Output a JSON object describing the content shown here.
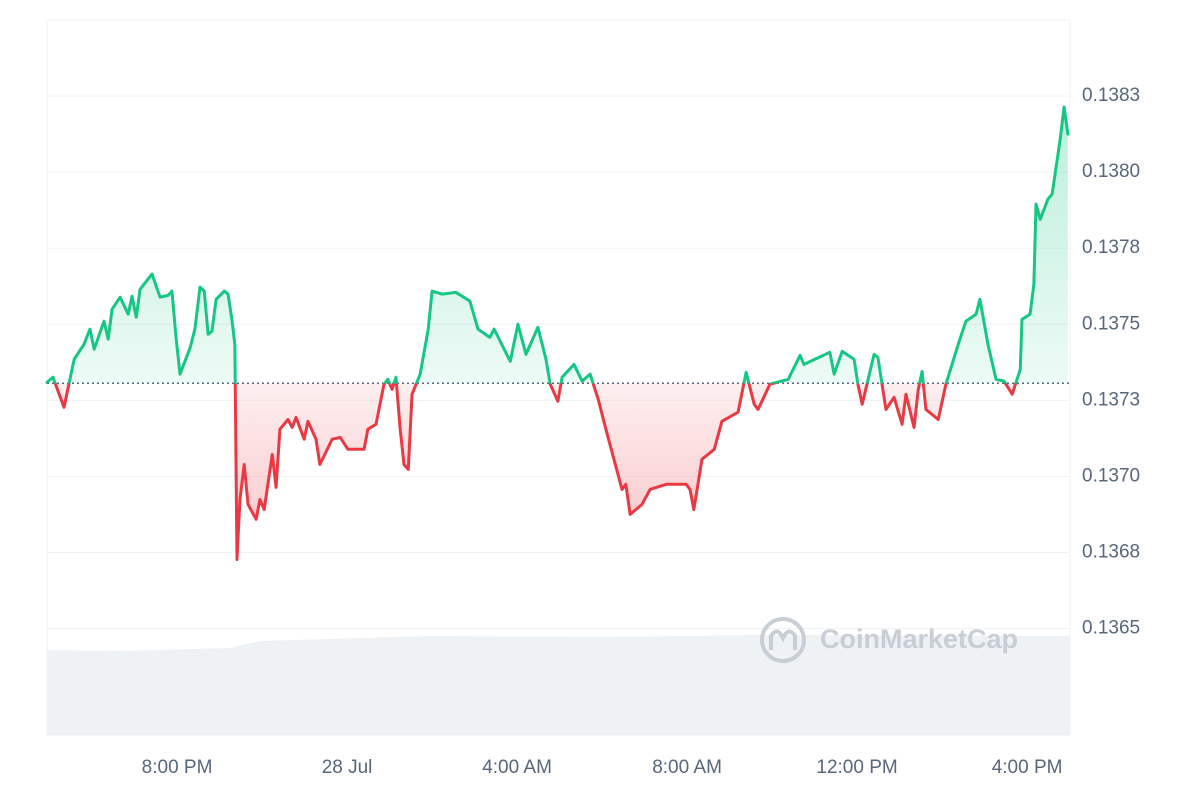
{
  "chart_data": {
    "type": "line",
    "watermark": "CoinMarketCap",
    "baseline": 0.137306,
    "up_color": "#16c784",
    "down_color": "#ea3943",
    "xlim": [
      16.94,
      41.01
    ],
    "xticks": [
      {
        "value": 20,
        "label": "8:00 PM"
      },
      {
        "value": 24,
        "label": "28 Jul"
      },
      {
        "value": 28,
        "label": "4:00 AM"
      },
      {
        "value": 32,
        "label": "8:00 AM"
      },
      {
        "value": 36,
        "label": "12:00 PM"
      },
      {
        "value": 40,
        "label": "4:00 PM"
      }
    ],
    "ylim": [
      0.13615,
      0.1385
    ],
    "yticks": [
      {
        "value": 0.13825,
        "label": "0.1383"
      },
      {
        "value": 0.138,
        "label": "0.1380"
      },
      {
        "value": 0.13775,
        "label": "0.1378"
      },
      0.1375,
      {
        "value": 0.13725,
        "label": "0.1373"
      },
      {
        "value": 0.137,
        "label": "0.1370"
      },
      {
        "value": 0.13675,
        "label": "0.1368"
      },
      0.1365
    ],
    "grid": true,
    "x": [
      16.94,
      17.08,
      17.34,
      17.58,
      17.81,
      17.95,
      18.05,
      18.28,
      18.38,
      18.47,
      18.66,
      18.85,
      18.94,
      19.04,
      19.13,
      19.41,
      19.6,
      19.79,
      19.88,
      19.98,
      20.07,
      20.31,
      20.42,
      20.54,
      20.64,
      20.73,
      20.82,
      20.92,
      21.11,
      21.2,
      21.29,
      21.36,
      21.41,
      21.48,
      21.58,
      21.67,
      21.86,
      21.95,
      22.05,
      22.24,
      22.33,
      22.42,
      22.61,
      22.71,
      22.8,
      22.99,
      23.08,
      23.27,
      23.36,
      23.65,
      23.84,
      24.02,
      24.4,
      24.49,
      24.68,
      24.87,
      24.96,
      25.06,
      25.15,
      25.25,
      25.34,
      25.44,
      25.53,
      25.72,
      25.91,
      26.0,
      26.24,
      26.56,
      26.89,
      27.08,
      27.36,
      27.46,
      27.84,
      28.02,
      28.21,
      28.49,
      28.68,
      28.78,
      28.96,
      29.06,
      29.34,
      29.53,
      29.72,
      29.91,
      30.09,
      30.28,
      30.47,
      30.56,
      30.66,
      30.94,
      31.13,
      31.51,
      31.98,
      32.07,
      32.16,
      32.35,
      32.64,
      32.82,
      33.2,
      33.39,
      33.58,
      33.67,
      33.95,
      34.38,
      34.66,
      34.75,
      35.36,
      35.46,
      35.65,
      35.93,
      36.02,
      36.12,
      36.4,
      36.49,
      36.68,
      36.87,
      37.06,
      37.15,
      37.34,
      37.44,
      37.53,
      37.62,
      37.91,
      38.09,
      38.38,
      38.56,
      38.8,
      38.89,
      39.08,
      39.27,
      39.46,
      39.65,
      39.84,
      39.88,
      40.07,
      40.16,
      40.21,
      40.31,
      40.49,
      40.59,
      40.78,
      40.87,
      40.96
    ],
    "values": [
      0.137309,
      0.137326,
      0.137227,
      0.137385,
      0.137434,
      0.137484,
      0.137418,
      0.13751,
      0.137451,
      0.137549,
      0.137589,
      0.137533,
      0.137592,
      0.137523,
      0.137615,
      0.137665,
      0.137589,
      0.137595,
      0.137609,
      0.137451,
      0.137336,
      0.137424,
      0.137484,
      0.137622,
      0.137609,
      0.137467,
      0.137477,
      0.137582,
      0.137609,
      0.137599,
      0.137516,
      0.137434,
      0.136727,
      0.136924,
      0.137039,
      0.136908,
      0.136859,
      0.136924,
      0.136891,
      0.137072,
      0.136964,
      0.137155,
      0.137187,
      0.137161,
      0.137194,
      0.137122,
      0.137181,
      0.137122,
      0.137039,
      0.137122,
      0.137128,
      0.137089,
      0.137089,
      0.137155,
      0.137171,
      0.137303,
      0.137319,
      0.137286,
      0.137326,
      0.137155,
      0.137039,
      0.137023,
      0.13727,
      0.137336,
      0.137484,
      0.137609,
      0.137599,
      0.137605,
      0.137576,
      0.137484,
      0.137457,
      0.137484,
      0.137378,
      0.1375,
      0.137401,
      0.13749,
      0.137385,
      0.137303,
      0.137247,
      0.137326,
      0.137368,
      0.137313,
      0.137336,
      0.137253,
      0.137155,
      0.137056,
      0.136957,
      0.136974,
      0.136875,
      0.136908,
      0.136957,
      0.136974,
      0.136974,
      0.136957,
      0.136891,
      0.137056,
      0.137089,
      0.137181,
      0.137211,
      0.137342,
      0.137237,
      0.13722,
      0.137303,
      0.137319,
      0.137398,
      0.137368,
      0.137408,
      0.137336,
      0.137411,
      0.137385,
      0.137303,
      0.137237,
      0.137401,
      0.137391,
      0.13722,
      0.13726,
      0.137171,
      0.13727,
      0.137161,
      0.137286,
      0.137345,
      0.13722,
      0.137187,
      0.137303,
      0.137434,
      0.13751,
      0.137533,
      0.137582,
      0.137434,
      0.137319,
      0.137313,
      0.13727,
      0.137352,
      0.137516,
      0.137533,
      0.137632,
      0.137895,
      0.137845,
      0.137911,
      0.137928,
      0.138109,
      0.138214,
      0.138125
    ]
  }
}
